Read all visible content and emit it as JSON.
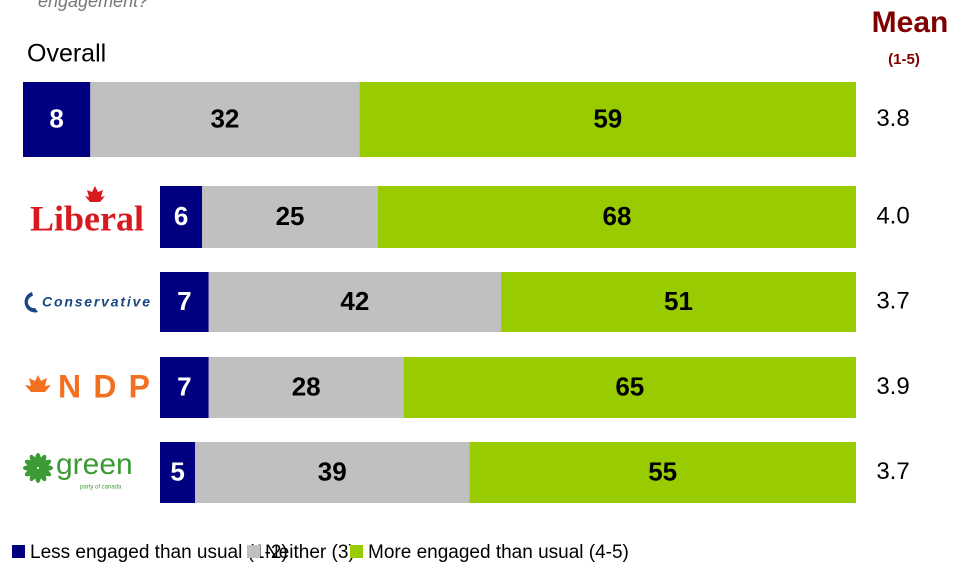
{
  "chart_data": {
    "type": "stacked-bar",
    "subtitle": "engagement?",
    "categories": [
      "Overall",
      "Liberal",
      "Conservative",
      "NDP",
      "green"
    ],
    "logo_tagline": "party of canada",
    "series": [
      {
        "name": "Less engaged than usual (1-2)",
        "color": "#000080",
        "values": [
          8,
          6,
          7,
          7,
          5
        ]
      },
      {
        "name": "Neither (3)",
        "color": "#c0c0c0",
        "values": [
          32,
          25,
          42,
          28,
          39
        ]
      },
      {
        "name": "More engaged than usual (4-5)",
        "color": "#99cc00",
        "values": [
          59,
          68,
          51,
          65,
          55
        ]
      }
    ],
    "mean": {
      "title": "Mean",
      "subtitle": "(1-5)",
      "color": "#7f0000",
      "values": [
        3.8,
        4,
        3.7,
        3.9,
        3.7
      ],
      "value_labels": [
        "3.8",
        "4.0",
        "3.7",
        "3.9",
        "3.7"
      ]
    }
  }
}
